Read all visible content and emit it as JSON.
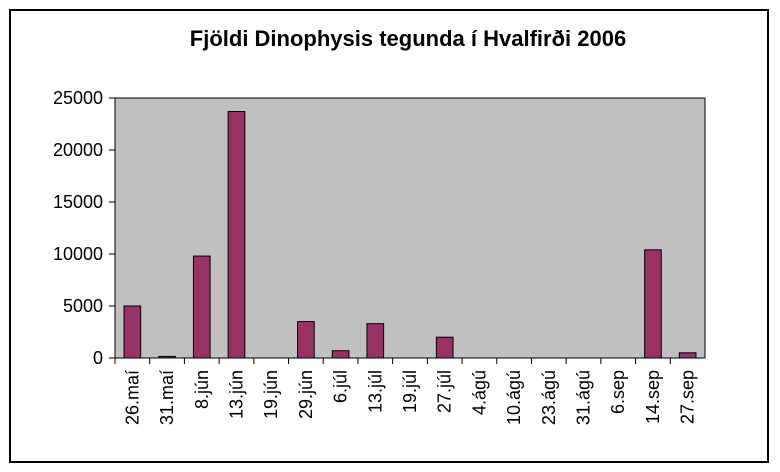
{
  "chart_data": {
    "type": "bar",
    "title": "Fjöldi Dinophysis tegunda í Hvalfirði 2006",
    "categories": [
      "26.maí",
      "31.maí",
      "8.jún",
      "13.jún",
      "19.jún",
      "29.jún",
      "6.júl",
      "13.júl",
      "19.júl",
      "27.júl",
      "4.ágú",
      "10.ágú",
      "23.ágú",
      "31.ágú",
      "6.sep",
      "14.sep",
      "27.sep"
    ],
    "values": [
      5000,
      150,
      9800,
      23700,
      0,
      3500,
      700,
      3300,
      0,
      2000,
      0,
      0,
      0,
      0,
      0,
      10400,
      500
    ],
    "color": "#993366",
    "plot_background": "#c0c0c0",
    "ylim": [
      0,
      25000
    ],
    "yticks": [
      0,
      5000,
      10000,
      15000,
      20000,
      25000
    ],
    "grid": false
  }
}
